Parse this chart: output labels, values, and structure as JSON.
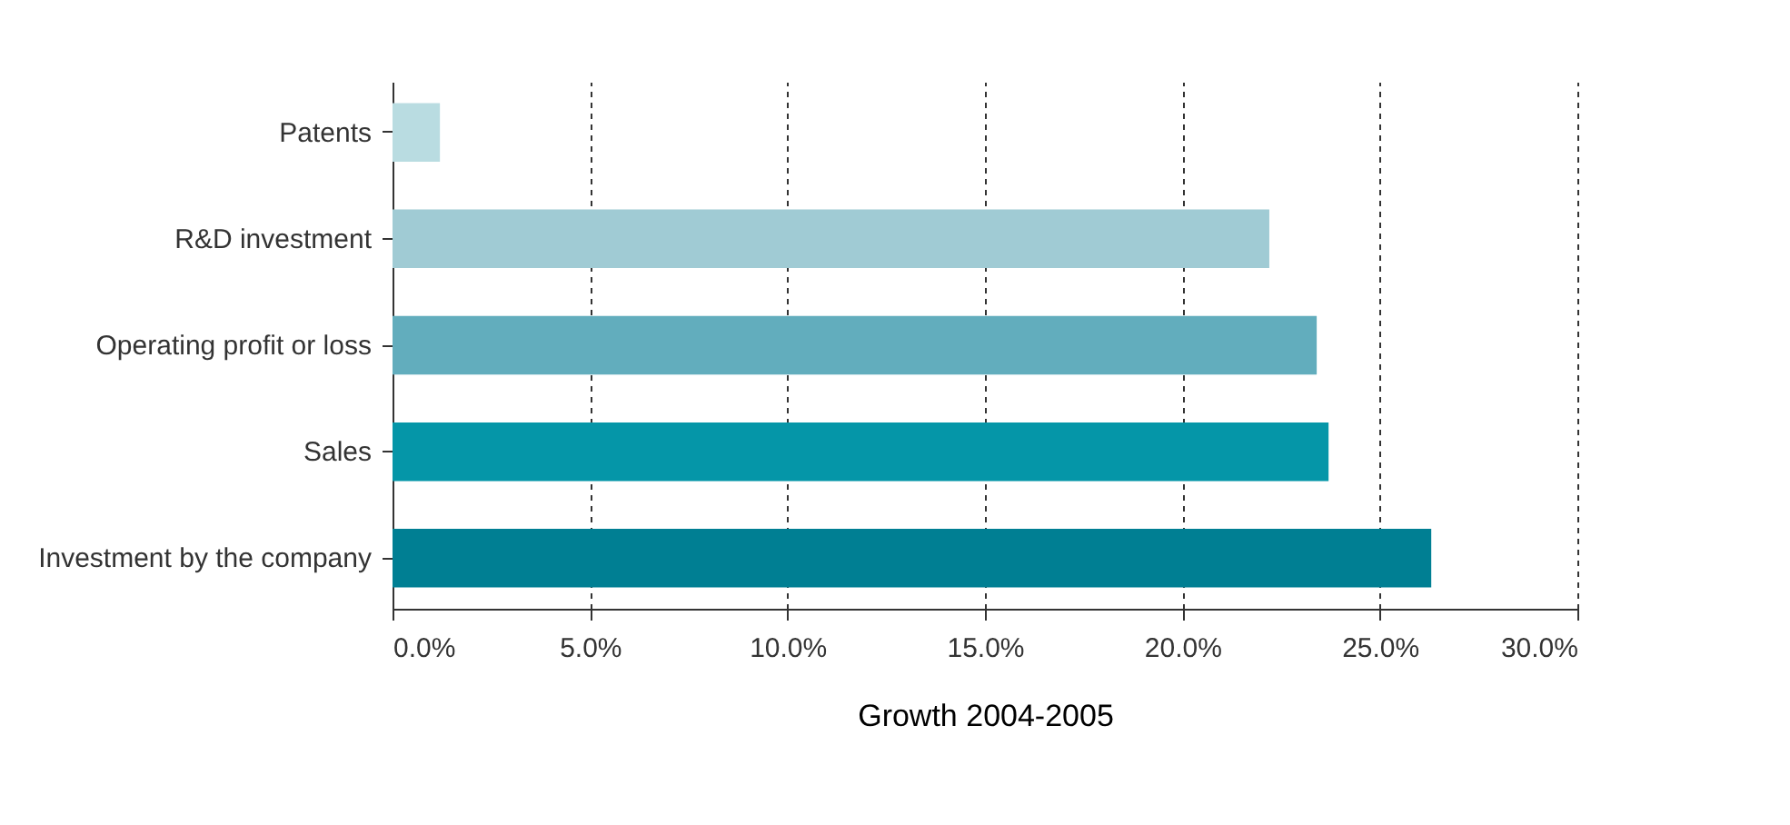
{
  "chart_data": {
    "type": "bar",
    "orientation": "horizontal",
    "xlabel": "Growth 2004-2005",
    "categories": [
      "Patents",
      "R&D investment",
      "Operating profit or loss",
      "Sales",
      "Investment by the company"
    ],
    "values": [
      1.2,
      22.2,
      23.4,
      23.7,
      26.3
    ],
    "colors": [
      "#b9dce1",
      "#a0cbd4",
      "#62adbd",
      "#0596a8",
      "#007f93"
    ],
    "xlim": [
      0,
      30
    ],
    "xticks": [
      {
        "value": 0,
        "label": "0.0%"
      },
      {
        "value": 5,
        "label": "5.0%"
      },
      {
        "value": 10,
        "label": "10.0%"
      },
      {
        "value": 15,
        "label": "15.0%"
      },
      {
        "value": 20,
        "label": "20.0%"
      },
      {
        "value": 25,
        "label": "25.0%"
      },
      {
        "value": 30,
        "label": "30.0%"
      }
    ],
    "grid": "x",
    "legend": false
  }
}
